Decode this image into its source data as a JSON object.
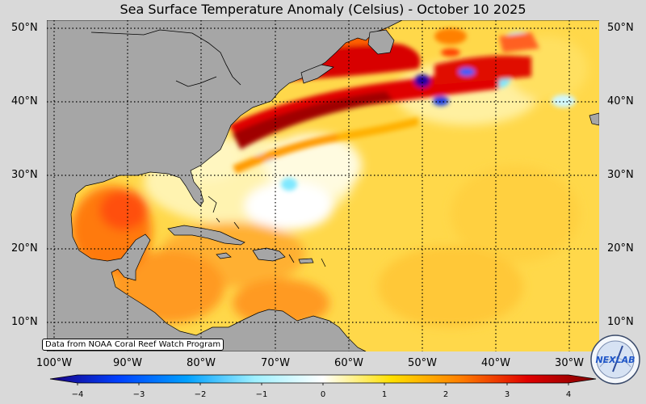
{
  "title": "Sea Surface Temperature Anomaly (Celsius) - October 10 2025",
  "credit": "Data from NOAA Coral Reef Watch Program",
  "logo_text": "NEXLAB",
  "lat_labels": [
    "50°N",
    "40°N",
    "30°N",
    "20°N",
    "10°N"
  ],
  "lon_labels": [
    "100°W",
    "90°W",
    "80°W",
    "70°W",
    "60°W",
    "50°W",
    "40°W",
    "30°W"
  ],
  "colorbar": {
    "ticks": [
      "−4",
      "−3",
      "−2",
      "−1",
      "0",
      "1",
      "2",
      "3",
      "4"
    ],
    "range": [
      -4,
      4
    ],
    "colors": [
      "#1a0080",
      "#0040ff",
      "#00a0ff",
      "#9ff0ff",
      "#ffffff",
      "#ffe000",
      "#ff8000",
      "#e00000",
      "#800000"
    ]
  },
  "colors": {
    "land": "#a6a6a6",
    "background": "#d9d9d9"
  }
}
